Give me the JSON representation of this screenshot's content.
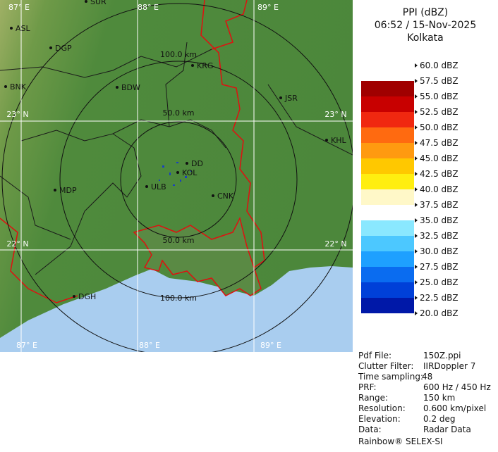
{
  "header": {
    "product": "PPI (dBZ)",
    "time": "06:52 / 15-Nov-2025",
    "site": "Kolkata"
  },
  "legend": {
    "labels": [
      "60.0 dBZ",
      "57.5 dBZ",
      "55.0 dBZ",
      "52.5 dBZ",
      "50.0 dBZ",
      "47.5 dBZ",
      "45.0 dBZ",
      "42.5 dBZ",
      "40.0 dBZ",
      "37.5 dBZ",
      "35.0 dBZ",
      "32.5 dBZ",
      "30.0 dBZ",
      "27.5 dBZ",
      "25.0 dBZ",
      "22.5 dBZ",
      "20.0 dBZ"
    ],
    "colors": [
      "#ffffff",
      "#a00000",
      "#c80000",
      "#f02810",
      "#ff6a10",
      "#ff9a10",
      "#ffc800",
      "#ffee10",
      "#fff8c8",
      "#ffffff",
      "#8ae8ff",
      "#4cc8ff",
      "#1ea0ff",
      "#0a6cf0",
      "#0040d8",
      "#0018a8"
    ]
  },
  "map": {
    "grid_labels": [
      "87° E",
      "88° E",
      "89° E",
      "87° E",
      "88° E",
      "89° E",
      "23° N",
      "23° N",
      "22° N",
      "22° N"
    ],
    "cities": [
      "SUR",
      "ASL",
      "DGP",
      "BNK",
      "BDW",
      "KRG",
      "JSR",
      "KHL",
      "MDP",
      "DD",
      "KOL",
      "ULB",
      "CNK",
      "DGH"
    ],
    "range_labels": [
      "100.0 km",
      "50.0 km",
      "50.0 km",
      "100.0 km"
    ]
  },
  "info": {
    "rows": [
      [
        "Pdf File:",
        "150Z.ppi"
      ],
      [
        "Clutter Filter:",
        "IIRDoppler 7"
      ],
      [
        "Time sampling:",
        "48"
      ],
      [
        "PRF:",
        "600 Hz / 450 Hz"
      ],
      [
        "Range:",
        "150 km"
      ],
      [
        "Resolution:",
        "0.600 km/pixel"
      ],
      [
        "Elevation:",
        "0.2 deg"
      ],
      [
        "Data:",
        "Radar Data"
      ]
    ]
  },
  "footer": "Rainbow® SELEX-SI"
}
